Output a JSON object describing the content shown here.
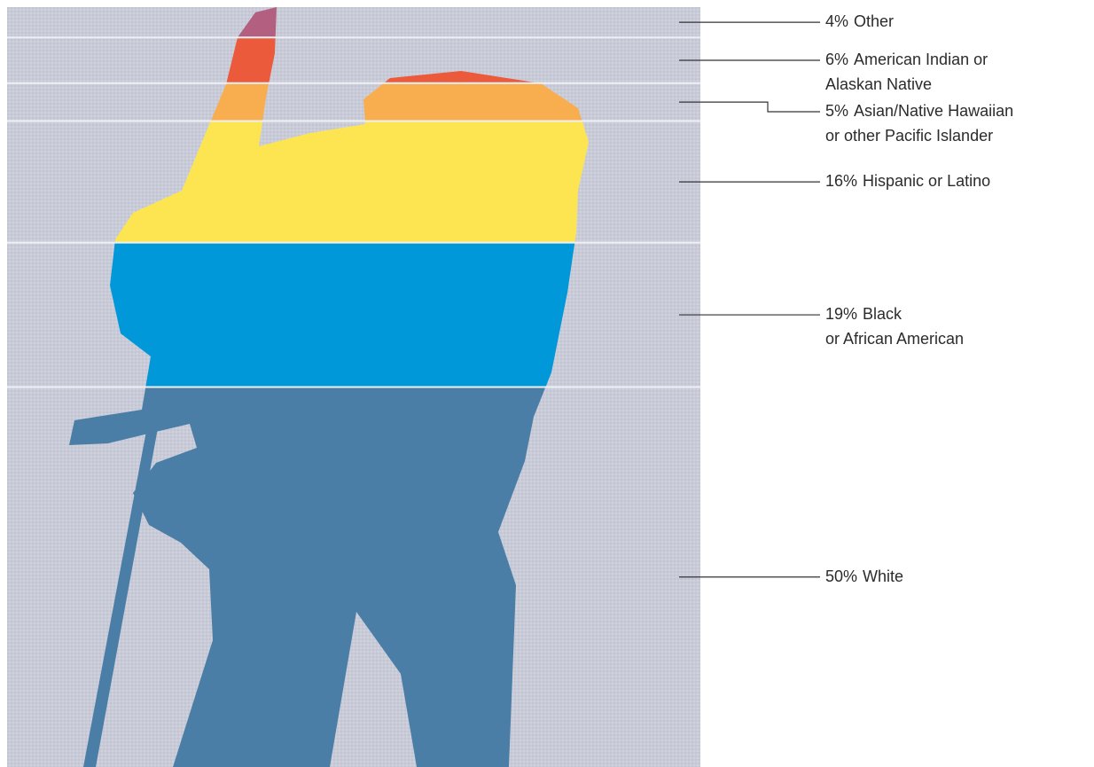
{
  "chart_data": {
    "type": "stacked",
    "categories": [
      [
        "Other"
      ],
      [
        "American Indian or",
        "Alaskan Native"
      ],
      [
        "Asian/Native Hawaiian",
        "or other Pacific Islander"
      ],
      [
        "Hispanic or Latino"
      ],
      [
        "Black",
        "or African American"
      ],
      [
        "White"
      ]
    ],
    "values": [
      4,
      6,
      5,
      16,
      19,
      50
    ],
    "value_labels": [
      "4%",
      "6%",
      "5%",
      "16%",
      "19%",
      "50%"
    ],
    "colors": [
      "#b25f80",
      "#ec5a3c",
      "#f8ad4e",
      "#fde552",
      "#0098d8",
      "#4a7ea6"
    ]
  }
}
